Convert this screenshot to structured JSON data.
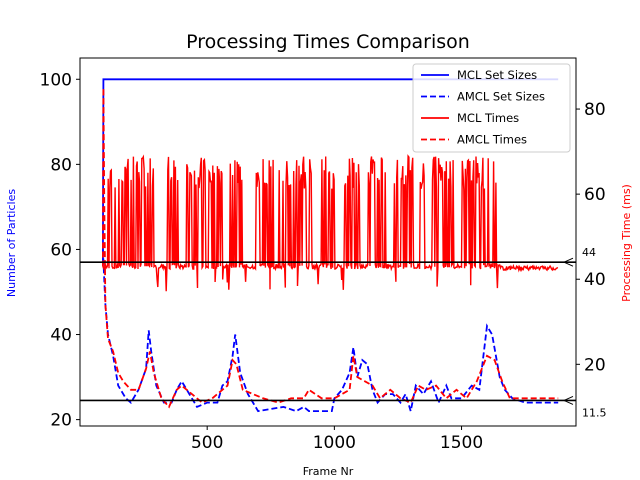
{
  "chart_data": {
    "type": "line",
    "title": "Processing Times Comparison",
    "xlabel": "Frame Nr",
    "ylabel_left": "Number of Particles",
    "ylabel_right": "Processing Time (ms)",
    "xlim": [
      0,
      1950
    ],
    "ylim_left": [
      18.5,
      105
    ],
    "ylim_right": [
      5.5,
      92
    ],
    "xticks": [
      500,
      1000,
      1500
    ],
    "yticks_left": [
      20,
      40,
      60,
      80,
      100
    ],
    "yticks_right": [
      20,
      40,
      60,
      80
    ],
    "colors": {
      "mcl": "#0000ff",
      "amcl_set": "#0000ff",
      "mcl_time": "#ff0000",
      "amcl_time": "#ff0000",
      "hline": "#000000"
    },
    "legend": {
      "position": "top-right",
      "entries": [
        {
          "label": "MCL Set Sizes",
          "color": "#0000ff",
          "style": "solid"
        },
        {
          "label": "AMCL Set Sizes",
          "color": "#0000ff",
          "style": "dashed"
        },
        {
          "label": "MCL Times",
          "color": "#ff0000",
          "style": "solid"
        },
        {
          "label": "AMCL Times",
          "color": "#ff0000",
          "style": "dashed"
        }
      ]
    },
    "hlines": [
      {
        "y_right": 44,
        "label": "44"
      },
      {
        "y_right": 11.5,
        "label": "11.5"
      }
    ],
    "series": [
      {
        "name": "MCL Set Sizes",
        "axis": "left",
        "style": "solid",
        "color": "#0000ff",
        "points": [
          [
            90,
            56
          ],
          [
            92,
            100
          ],
          [
            1880,
            100
          ]
        ]
      },
      {
        "name": "AMCL Set Sizes",
        "axis": "left",
        "style": "dashed",
        "color": "#0000ff",
        "points": [
          [
            90,
            60
          ],
          [
            100,
            47
          ],
          [
            110,
            40
          ],
          [
            130,
            35
          ],
          [
            150,
            28
          ],
          [
            180,
            25
          ],
          [
            200,
            24
          ],
          [
            230,
            27
          ],
          [
            260,
            32
          ],
          [
            270,
            41
          ],
          [
            280,
            36
          ],
          [
            300,
            28
          ],
          [
            330,
            24
          ],
          [
            360,
            24
          ],
          [
            380,
            27
          ],
          [
            400,
            29
          ],
          [
            430,
            26
          ],
          [
            460,
            23
          ],
          [
            500,
            24
          ],
          [
            540,
            24
          ],
          [
            560,
            28
          ],
          [
            580,
            29
          ],
          [
            600,
            35
          ],
          [
            610,
            40
          ],
          [
            630,
            31
          ],
          [
            660,
            26
          ],
          [
            700,
            22
          ],
          [
            800,
            23
          ],
          [
            850,
            22
          ],
          [
            880,
            23
          ],
          [
            900,
            22
          ],
          [
            950,
            22
          ],
          [
            990,
            22
          ],
          [
            1000,
            25
          ],
          [
            1030,
            27
          ],
          [
            1060,
            31
          ],
          [
            1075,
            37
          ],
          [
            1090,
            30
          ],
          [
            1110,
            34
          ],
          [
            1130,
            33
          ],
          [
            1150,
            27
          ],
          [
            1170,
            24
          ],
          [
            1200,
            26
          ],
          [
            1230,
            26
          ],
          [
            1260,
            24
          ],
          [
            1280,
            26
          ],
          [
            1300,
            22
          ],
          [
            1320,
            28
          ],
          [
            1350,
            26
          ],
          [
            1380,
            29
          ],
          [
            1410,
            24
          ],
          [
            1440,
            28
          ],
          [
            1460,
            25
          ],
          [
            1500,
            25
          ],
          [
            1540,
            28
          ],
          [
            1570,
            27
          ],
          [
            1600,
            42
          ],
          [
            1620,
            40
          ],
          [
            1650,
            30
          ],
          [
            1670,
            27
          ],
          [
            1700,
            25
          ],
          [
            1750,
            24
          ],
          [
            1880,
            24
          ]
        ]
      },
      {
        "name": "MCL Times",
        "axis": "right",
        "style": "solid",
        "color": "#ff0000",
        "baseline": 43,
        "lows": [
          37,
          40
        ],
        "points": [
          [
            90,
            43
          ],
          [
            1650,
            43
          ],
          [
            1700,
            42.5
          ],
          [
            1880,
            43
          ]
        ],
        "spike_ranges": [
          [
            110,
            290
          ],
          [
            340,
            390
          ],
          [
            420,
            560
          ],
          [
            590,
            640
          ],
          [
            690,
            760
          ],
          [
            780,
            910
          ],
          [
            950,
            1000
          ],
          [
            1040,
            1100
          ],
          [
            1130,
            1200
          ],
          [
            1230,
            1310
          ],
          [
            1330,
            1360
          ],
          [
            1380,
            1470
          ],
          [
            1500,
            1640
          ]
        ],
        "spike_top": 69
      },
      {
        "name": "AMCL Times",
        "axis": "right",
        "style": "dashed",
        "color": "#ff0000",
        "points": [
          [
            90,
            43
          ],
          [
            92,
            85
          ],
          [
            95,
            60
          ],
          [
            100,
            34
          ],
          [
            110,
            26
          ],
          [
            130,
            23
          ],
          [
            150,
            18
          ],
          [
            170,
            16
          ],
          [
            200,
            14
          ],
          [
            230,
            14
          ],
          [
            260,
            19
          ],
          [
            275,
            23
          ],
          [
            290,
            18
          ],
          [
            320,
            12
          ],
          [
            350,
            10
          ],
          [
            380,
            14
          ],
          [
            400,
            15
          ],
          [
            440,
            13
          ],
          [
            480,
            11
          ],
          [
            520,
            12
          ],
          [
            560,
            14
          ],
          [
            580,
            15
          ],
          [
            600,
            21
          ],
          [
            615,
            20
          ],
          [
            640,
            14
          ],
          [
            680,
            13
          ],
          [
            720,
            12
          ],
          [
            780,
            11
          ],
          [
            830,
            12
          ],
          [
            880,
            12
          ],
          [
            900,
            14
          ],
          [
            950,
            12
          ],
          [
            1000,
            12
          ],
          [
            1030,
            13
          ],
          [
            1060,
            14
          ],
          [
            1075,
            22
          ],
          [
            1090,
            17
          ],
          [
            1120,
            16
          ],
          [
            1150,
            15
          ],
          [
            1180,
            12
          ],
          [
            1220,
            14
          ],
          [
            1260,
            12
          ],
          [
            1300,
            11
          ],
          [
            1330,
            15
          ],
          [
            1360,
            14
          ],
          [
            1400,
            15
          ],
          [
            1440,
            12
          ],
          [
            1480,
            14
          ],
          [
            1520,
            12
          ],
          [
            1560,
            16
          ],
          [
            1600,
            22
          ],
          [
            1630,
            21
          ],
          [
            1660,
            16
          ],
          [
            1690,
            12
          ],
          [
            1720,
            12
          ],
          [
            1800,
            12
          ],
          [
            1880,
            12
          ]
        ]
      }
    ]
  }
}
